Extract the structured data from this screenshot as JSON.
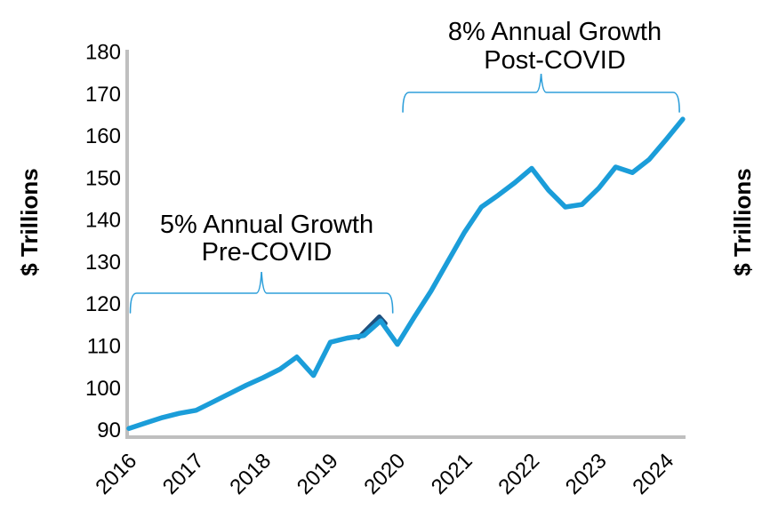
{
  "chart_data": {
    "type": "line",
    "title": "",
    "ylabel_left": "$ Trillions",
    "ylabel_right": "$ Trillions",
    "ylim": [
      90,
      180
    ],
    "y_ticks": [
      "90",
      "100",
      "110",
      "120",
      "130",
      "140",
      "150",
      "160",
      "170",
      "180"
    ],
    "x_tick_labels": [
      "2016",
      "2017",
      "2018",
      "2019",
      "2020",
      "2021",
      "2022",
      "2023",
      "2024"
    ],
    "x_start_year": 2016,
    "x_step_years": 0.25,
    "grid": "off",
    "legend": "none",
    "series": [
      {
        "name": "value-line",
        "color": "#1B9DD9",
        "values": [
          90.3,
          91.6,
          92.9,
          93.9,
          94.6,
          96.6,
          98.6,
          100.6,
          102.4,
          104.4,
          107.3,
          102.9,
          110.8,
          111.8,
          112.4,
          115.9,
          110.3,
          116.8,
          123.0,
          130.0,
          137.0,
          143.0,
          145.8,
          148.8,
          152.2,
          147.0,
          143.0,
          143.6,
          147.5,
          152.5,
          151.2,
          154.3,
          159.0,
          163.9
        ]
      },
      {
        "name": "overlap-dark-segment",
        "color": "#20517F",
        "points": [
          [
            2019.42,
            111.9
          ],
          [
            2019.73,
            116.9
          ],
          [
            2019.82,
            115.3
          ]
        ]
      }
    ],
    "annotations": [
      {
        "line1": "5% Annual Growth",
        "line2": "Pre-COVID",
        "from_year": 2016.02,
        "to_year": 2019.93
      },
      {
        "line1": "8% Annual Growth",
        "line2": "Post-COVID",
        "from_year": 2020.08,
        "to_year": 2024.2
      }
    ],
    "colors": {
      "line": "#1B9DD9",
      "overlap": "#20517F",
      "brace": "#2E9FDA",
      "axis": "#BFBFBF",
      "text": "#000000"
    }
  }
}
